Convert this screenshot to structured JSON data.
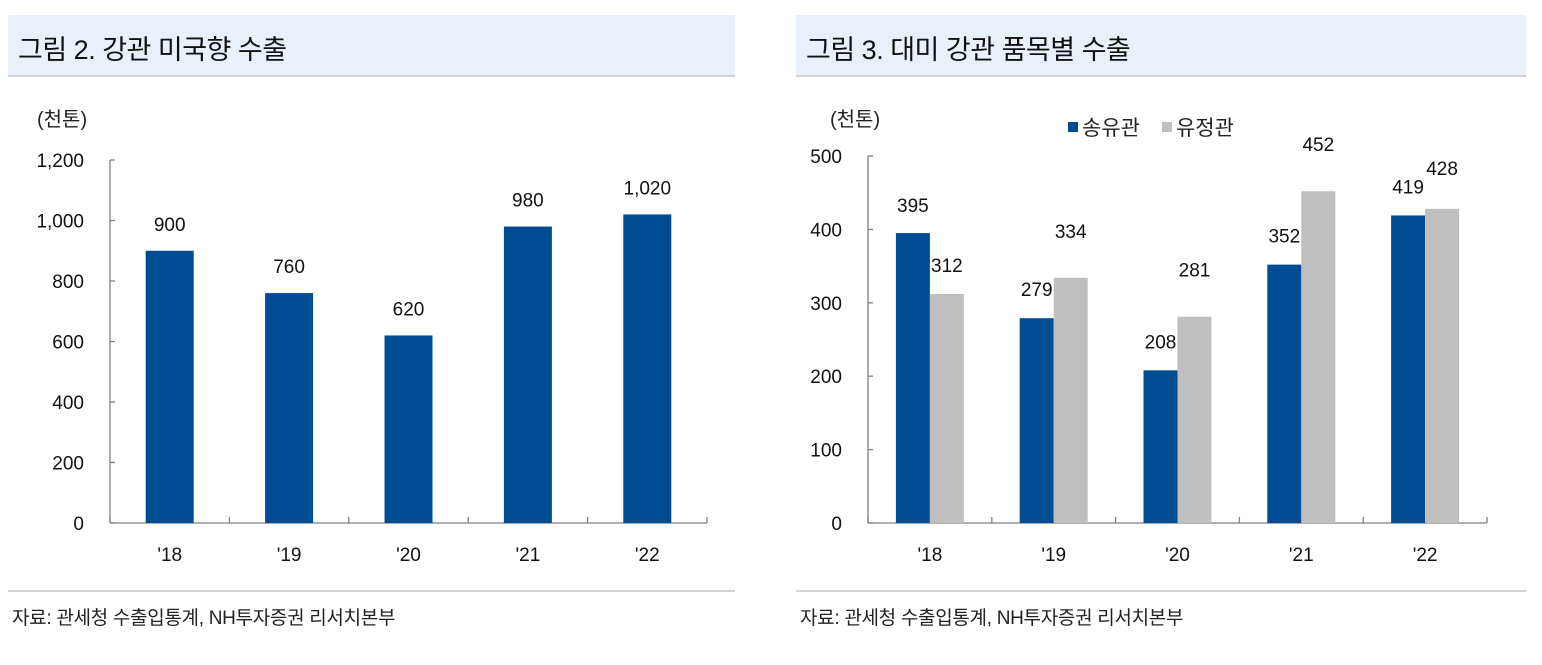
{
  "colors": {
    "blue": "#004c93",
    "gray": "#bfbfbf",
    "title_bg": "#e9f0f9",
    "axis": "#7f7f7f"
  },
  "left": {
    "title": "그림 2. 강관 미국향 수출",
    "unit": "(천톤)",
    "source": "자료: 관세청 수출입통계, NH투자증권 리서치본부"
  },
  "right": {
    "title": "그림 3. 대미 강관 품목별 수출",
    "unit": "(천톤)",
    "legend": [
      "송유관",
      "유정관"
    ],
    "source": "자료: 관세청 수출입통계, NH투자증권 리서치본부"
  },
  "chart_data": [
    {
      "type": "bar",
      "title": "그림 2. 강관 미국향 수출",
      "xlabel": "",
      "ylabel": "(천톤)",
      "categories": [
        "'18",
        "'19",
        "'20",
        "'21",
        "'22"
      ],
      "values": [
        900,
        760,
        620,
        980,
        1020
      ],
      "value_labels": [
        "900",
        "760",
        "620",
        "980",
        "1,020"
      ],
      "ylim": [
        0,
        1200
      ],
      "yticks": [
        0,
        200,
        400,
        600,
        800,
        1000,
        1200
      ],
      "ytick_labels": [
        "0",
        "200",
        "400",
        "600",
        "800",
        "1,000",
        "1,200"
      ],
      "grid": false,
      "legend": null
    },
    {
      "type": "bar",
      "title": "그림 3. 대미 강관 품목별 수출",
      "xlabel": "",
      "ylabel": "(천톤)",
      "categories": [
        "'18",
        "'19",
        "'20",
        "'21",
        "'22"
      ],
      "series": [
        {
          "name": "송유관",
          "color": "#004c93",
          "values": [
            395,
            279,
            208,
            352,
            419
          ]
        },
        {
          "name": "유정관",
          "color": "#bfbfbf",
          "values": [
            312,
            334,
            281,
            452,
            428
          ]
        }
      ],
      "ylim": [
        0,
        500
      ],
      "yticks": [
        0,
        100,
        200,
        300,
        400,
        500
      ],
      "ytick_labels": [
        "0",
        "100",
        "200",
        "300",
        "400",
        "500"
      ],
      "grid": false,
      "legend_position": "top"
    }
  ]
}
